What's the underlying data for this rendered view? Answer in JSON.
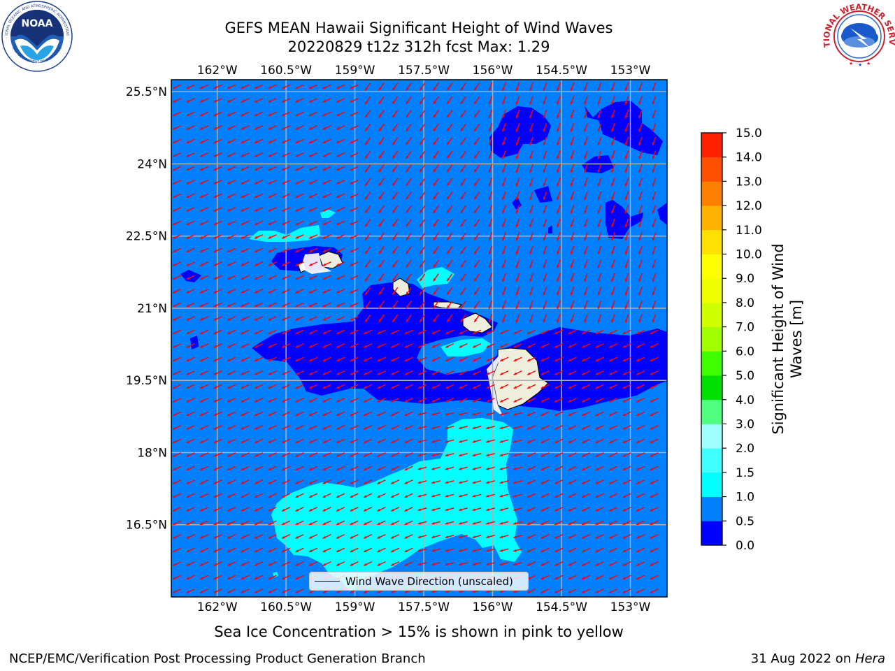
{
  "header": {
    "title_line1": "GEFS MEAN Hawaii Significant Height of Wind Waves",
    "title_line2": "20220829 t12z 312h fcst   Max: 1.29"
  },
  "logos": {
    "noaa_text": "NOAA",
    "noaa_ring_text": "NATIONAL OCEANIC AND ATMOSPHERIC ADMINISTRATION",
    "noaa_ring_text_bottom": "U.S. DEPARTMENT OF COMMERCE",
    "nws_ring_text": "NATIONAL WEATHER SERVICE"
  },
  "map": {
    "lon_labels": [
      "162°W",
      "160.5°W",
      "159°W",
      "157.5°W",
      "156°W",
      "154.5°W",
      "153°W"
    ],
    "lat_labels": [
      "25.5°N",
      "24°N",
      "22.5°N",
      "21°N",
      "19.5°N",
      "18°N",
      "16.5°N"
    ],
    "lon_values": [
      -162,
      -160.5,
      -159,
      -157.5,
      -156,
      -154.5,
      -153
    ],
    "lat_values": [
      25.5,
      24,
      22.5,
      21,
      19.5,
      18,
      16.5
    ],
    "extent": {
      "lon_min": -163,
      "lon_max": -152.2,
      "lat_min": 15.0,
      "lat_max": 25.75
    },
    "ocean_fill": "#0080ff",
    "arrow_color": "#ff0000",
    "legend_label": "Wind Wave Direction (unscaled)"
  },
  "colorbar": {
    "label": "Significant Height of Wind Waves [m]",
    "ticks": [
      "0.0",
      "0.5",
      "1.0",
      "1.5",
      "2.0",
      "3.0",
      "4.0",
      "5.0",
      "6.0",
      "7.0",
      "8.0",
      "9.0",
      "10.0",
      "11.0",
      "12.0",
      "13.0",
      "14.0",
      "15.0"
    ],
    "colors": [
      "#0000ff",
      "#0080ff",
      "#00ffff",
      "#40ffff",
      "#a0ffff",
      "#50ff80",
      "#00e000",
      "#40ff00",
      "#a0ff00",
      "#d0ff00",
      "#f0ff00",
      "#ffff00",
      "#ffe000",
      "#ffb000",
      "#ff8000",
      "#ff5000",
      "#ff2000"
    ]
  },
  "footer": {
    "ice_note": "Sea Ice Concentration > 15% is shown in pink to yellow",
    "left": "NCEP/EMC/Verification Post Processing Product Generation Branch",
    "right_date": "31 Aug 2022 on ",
    "right_machine": "Hera"
  }
}
